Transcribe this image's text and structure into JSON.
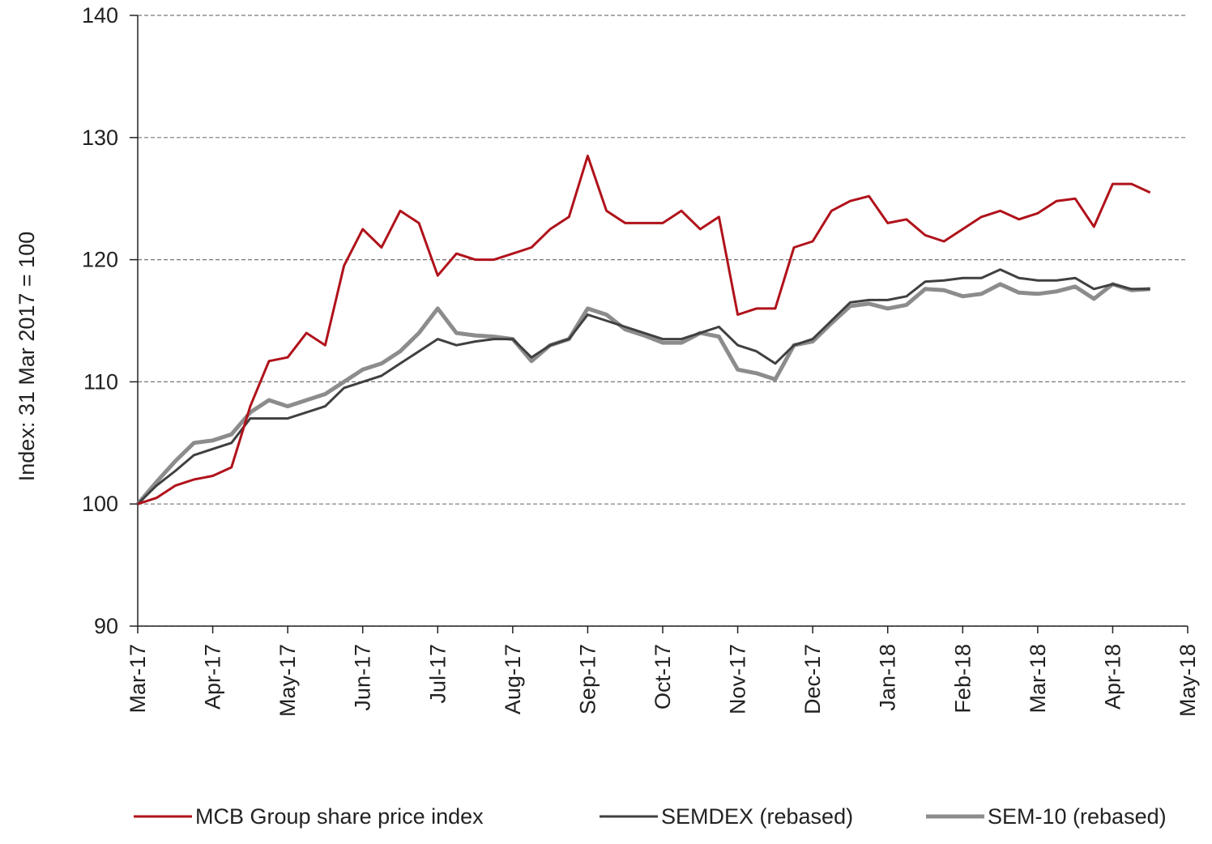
{
  "chart_data": {
    "type": "line",
    "y_label": "Index: 31 Mar 2017 = 100",
    "x": [
      0,
      0.25,
      0.5,
      0.75,
      1,
      1.25,
      1.5,
      1.75,
      2,
      2.25,
      2.5,
      2.75,
      3,
      3.25,
      3.5,
      3.75,
      4,
      4.25,
      4.5,
      4.75,
      5,
      5.25,
      5.5,
      5.75,
      6,
      6.25,
      6.5,
      6.75,
      7,
      7.25,
      7.5,
      7.75,
      8,
      8.25,
      8.5,
      8.75,
      9,
      9.25,
      9.5,
      9.75,
      10,
      10.25,
      10.5,
      10.75,
      11,
      11.25,
      11.5,
      11.75,
      12,
      12.25,
      12.5,
      12.75,
      13,
      13.25,
      13.5
    ],
    "xlim": [
      0,
      14
    ],
    "xticks": [
      {
        "value": 0,
        "label": "Mar-17"
      },
      {
        "value": 1,
        "label": "Apr-17"
      },
      {
        "value": 2,
        "label": "May-17"
      },
      {
        "value": 3,
        "label": "Jun-17"
      },
      {
        "value": 4,
        "label": "Jul-17"
      },
      {
        "value": 5,
        "label": "Aug-17"
      },
      {
        "value": 6,
        "label": "Sep-17"
      },
      {
        "value": 7,
        "label": "Oct-17"
      },
      {
        "value": 8,
        "label": "Nov-17"
      },
      {
        "value": 9,
        "label": "Dec-17"
      },
      {
        "value": 10,
        "label": "Jan-18"
      },
      {
        "value": 11,
        "label": "Feb-18"
      },
      {
        "value": 12,
        "label": "Mar-18"
      },
      {
        "value": 13,
        "label": "Apr-18"
      },
      {
        "value": 14,
        "label": "May-18"
      }
    ],
    "ylim": [
      90,
      140
    ],
    "yticks": [
      90,
      100,
      110,
      120,
      130,
      140
    ],
    "grid": true,
    "legend": "bottom",
    "series": [
      {
        "name": "MCB Group share price index",
        "color": "#b0121b",
        "width": 3,
        "values": [
          100,
          100.5,
          101.5,
          102,
          102.3,
          103,
          108,
          111.7,
          112,
          114,
          113,
          119.5,
          122.5,
          121,
          124,
          123,
          118.7,
          120.5,
          120,
          120,
          120.5,
          121,
          122.5,
          123.5,
          128.5,
          124,
          123,
          123,
          123,
          124,
          122.5,
          123.5,
          115.5,
          116,
          116,
          121,
          121.5,
          124,
          124.8,
          125.2,
          123,
          123.3,
          122,
          121.5,
          122.5,
          123.5,
          124,
          123.3,
          123.8,
          124.8,
          125,
          122.7,
          126.2,
          126.2,
          125.5
        ]
      },
      {
        "name": "SEMDEX (rebased)",
        "color": "#404040",
        "width": 3,
        "values": [
          100,
          101.5,
          102.7,
          104,
          104.5,
          105,
          107,
          107,
          107,
          107.5,
          108,
          109.5,
          110,
          110.5,
          111.5,
          112.5,
          113.5,
          113,
          113.3,
          113.5,
          113.5,
          112,
          113,
          113.5,
          115.5,
          115,
          114.5,
          114,
          113.5,
          113.5,
          114,
          114.5,
          113,
          112.5,
          111.5,
          113,
          113.5,
          115,
          116.5,
          116.7,
          116.7,
          117,
          118.2,
          118.3,
          118.5,
          118.5,
          119.2,
          118.5,
          118.3,
          118.3,
          118.5,
          117.6,
          118,
          117.6,
          117.6
        ]
      },
      {
        "name": "SEM-10 (rebased)",
        "color": "#8c8c8c",
        "width": 5,
        "values": [
          100,
          101.8,
          103.5,
          105,
          105.2,
          105.7,
          107.5,
          108.5,
          108,
          108.5,
          109,
          110,
          111,
          111.5,
          112.5,
          114,
          116,
          114,
          113.8,
          113.7,
          113.5,
          111.7,
          113,
          113.5,
          116,
          115.5,
          114.3,
          113.8,
          113.2,
          113.2,
          114,
          113.7,
          111,
          110.7,
          110.2,
          113,
          113.3,
          114.8,
          116.2,
          116.4,
          116,
          116.3,
          117.6,
          117.5,
          117,
          117.2,
          118,
          117.3,
          117.2,
          117.4,
          117.8,
          116.8,
          118,
          117.5,
          117.6
        ]
      }
    ]
  }
}
